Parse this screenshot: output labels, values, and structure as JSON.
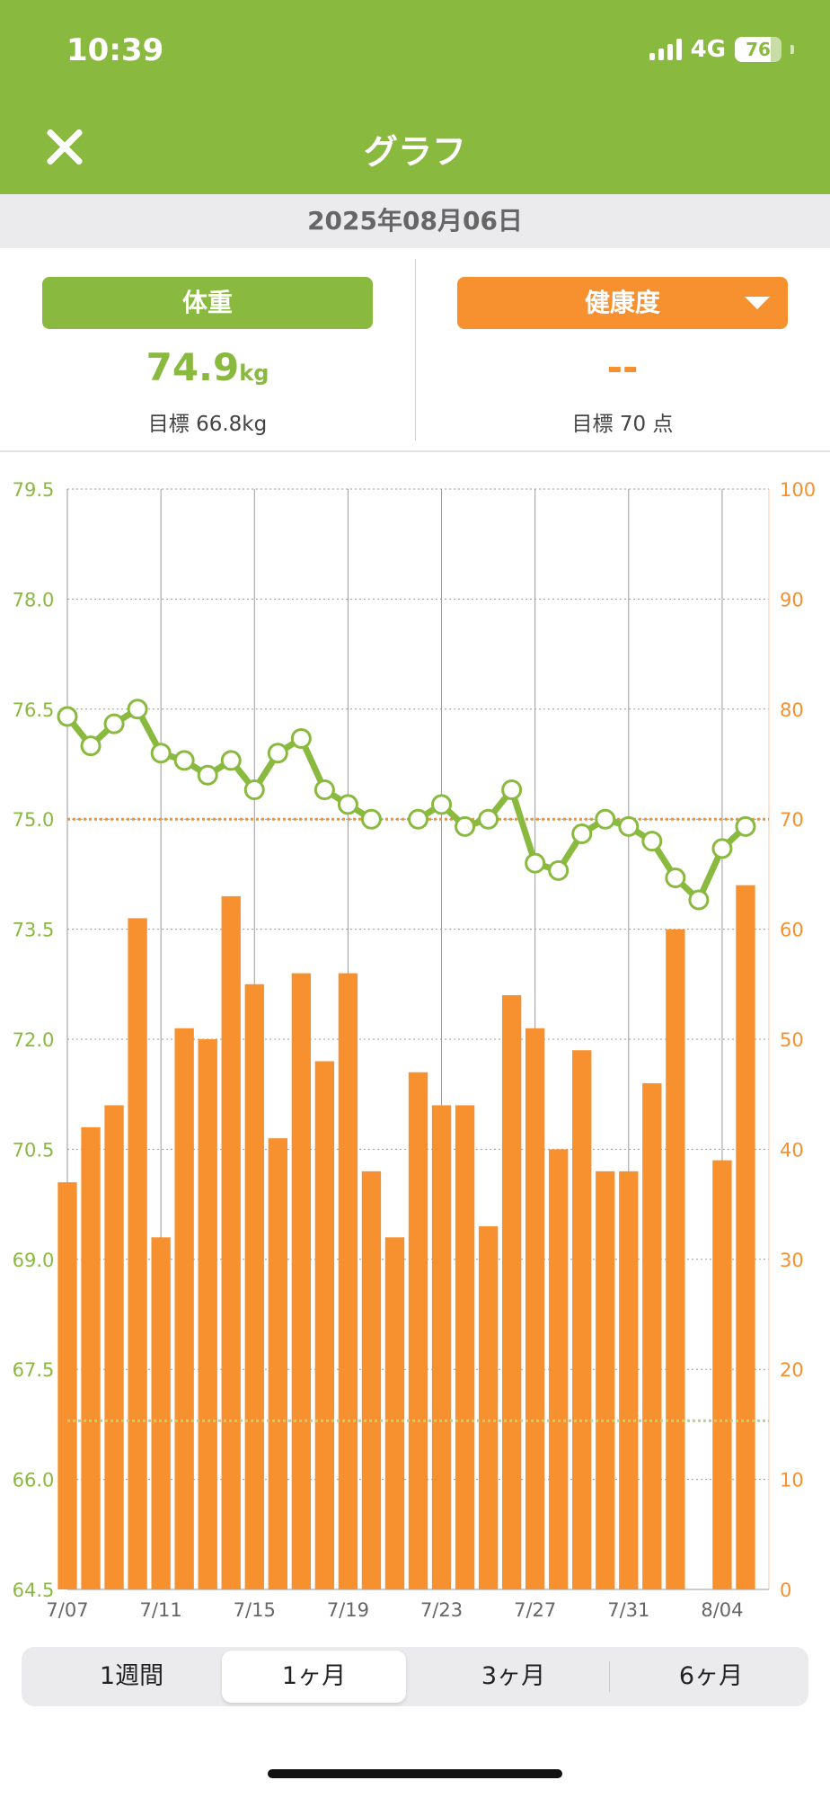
{
  "status_bar": {
    "time": "10:39",
    "network": "4G",
    "battery": "76"
  },
  "header": {
    "title": "グラフ"
  },
  "date": "2025年08月06日",
  "weight_panel": {
    "label": "体重",
    "value": "74.9",
    "unit": "kg",
    "target": "目標 66.8kg"
  },
  "health_panel": {
    "label": "健康度",
    "value": "--",
    "target": "目標 70 点"
  },
  "tabs": [
    {
      "label": "1週間",
      "active": false
    },
    {
      "label": "1ヶ月",
      "active": true
    },
    {
      "label": "3ヶ月",
      "active": false
    },
    {
      "label": "6ヶ月",
      "active": false
    }
  ],
  "colors": {
    "green": "#8ab940",
    "orange": "#f7902e"
  },
  "chart_data": {
    "type": "bar+line",
    "x_tick_labels": [
      "7/07",
      "7/11",
      "7/15",
      "7/19",
      "7/23",
      "7/27",
      "7/31",
      "8/04"
    ],
    "dates": [
      "7/07",
      "7/08",
      "7/09",
      "7/10",
      "7/11",
      "7/12",
      "7/13",
      "7/14",
      "7/15",
      "7/16",
      "7/17",
      "7/18",
      "7/19",
      "7/20",
      "7/21",
      "7/22",
      "7/23",
      "7/24",
      "7/25",
      "7/26",
      "7/27",
      "7/28",
      "7/29",
      "7/30",
      "7/31",
      "8/01",
      "8/02",
      "8/03",
      "8/04",
      "8/05",
      "8/06"
    ],
    "left_axis": {
      "ylim": [
        64.5,
        79.5
      ],
      "ticks": [
        "64.5",
        "66.0",
        "67.5",
        "69.0",
        "70.5",
        "72.0",
        "73.5",
        "75.0",
        "76.5",
        "78.0",
        "79.5"
      ],
      "color": "#8ab940"
    },
    "right_axis": {
      "ylim": [
        0,
        100
      ],
      "ticks": [
        "0",
        "10",
        "20",
        "30",
        "40",
        "50",
        "60",
        "70",
        "80",
        "90",
        "100"
      ],
      "color": "#f7902e"
    },
    "series": [
      {
        "axis": "right",
        "type": "bar",
        "color": "#f7902e",
        "values": [
          37,
          42,
          44,
          61,
          32,
          51,
          50,
          63,
          55,
          41,
          56,
          48,
          56,
          38,
          32,
          47,
          44,
          44,
          33,
          54,
          51,
          40,
          49,
          38,
          38,
          46,
          60,
          null,
          39,
          64,
          null
        ]
      },
      {
        "axis": "left",
        "type": "line",
        "color": "#8ab940",
        "values": [
          76.4,
          76.0,
          76.3,
          76.5,
          75.9,
          75.8,
          75.6,
          75.8,
          75.4,
          75.9,
          76.1,
          75.4,
          75.2,
          75.0,
          null,
          75.0,
          75.2,
          74.9,
          75.0,
          75.4,
          74.4,
          74.3,
          74.8,
          75.0,
          74.9,
          74.7,
          74.2,
          73.9,
          74.6,
          74.9,
          null
        ]
      }
    ],
    "reference_lines": [
      {
        "axis": "left",
        "value": 66.8,
        "color": "#b5d67a",
        "style": "dotted"
      },
      {
        "axis": "right",
        "value": 70,
        "color": "#f7902e",
        "style": "dotted"
      }
    ],
    "grid": true
  }
}
